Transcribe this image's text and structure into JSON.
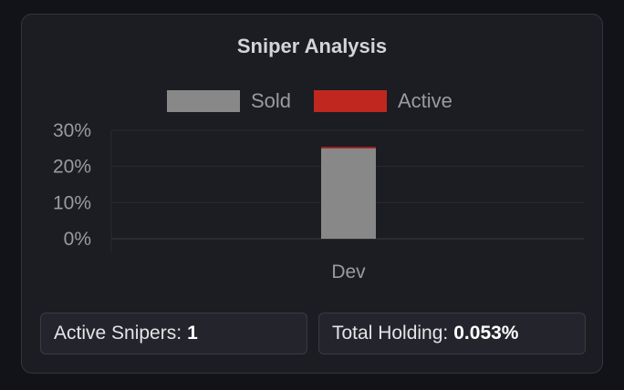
{
  "colors": {
    "sold": "#888888",
    "active": "#c0271f",
    "grid": "#2a2b31",
    "text": "#9a9aa0"
  },
  "chart_data": {
    "type": "bar",
    "stacked": true,
    "title": "Sniper Analysis",
    "categories": [
      "Dev"
    ],
    "series": [
      {
        "name": "Sold",
        "values": [
          25
        ]
      },
      {
        "name": "Active",
        "values": [
          0.053
        ]
      }
    ],
    "ylim": [
      0,
      30
    ],
    "yticks": [
      0,
      10,
      20,
      30
    ],
    "ytick_labels": [
      "0%",
      "10%",
      "20%",
      "30%"
    ],
    "grid": true,
    "legend_position": "top"
  },
  "stats": {
    "active_snipers_label": "Active Snipers:",
    "active_snipers_value": "1",
    "total_holding_label": "Total Holding:",
    "total_holding_value": "0.053%"
  }
}
